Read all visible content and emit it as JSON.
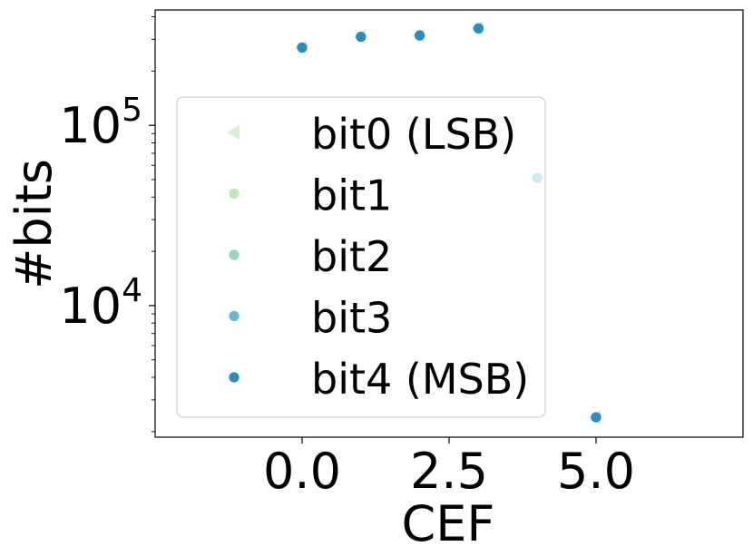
{
  "chart_data": {
    "type": "scatter",
    "xlabel": "CEF",
    "ylabel": "#bits",
    "xlim": [
      -2.5,
      7.5
    ],
    "ylim_log10": [
      3.27,
      5.64
    ],
    "yscale": "log",
    "xticks": [
      0.0,
      2.5,
      5.0
    ],
    "xtick_labels": [
      "0.0",
      "2.5",
      "5.0"
    ],
    "yticks": [
      10000,
      100000
    ],
    "ytick_labels": [
      {
        "base": "10",
        "exp": "4"
      },
      {
        "base": "10",
        "exp": "5"
      }
    ],
    "grid": false,
    "legend_position": "center-left",
    "series": [
      {
        "name": "bit0 (LSB)",
        "marker": "triangle-left",
        "color": "#d9f0d3",
        "x": [
          0,
          1,
          2,
          3,
          4,
          5
        ],
        "y": [
          270000,
          310000,
          315000,
          345000,
          51000,
          2400
        ]
      },
      {
        "name": "bit1",
        "marker": "circle",
        "color": "#c2e6bd",
        "x": [
          0,
          1,
          2,
          3,
          4,
          5
        ],
        "y": [
          270000,
          310000,
          315000,
          345000,
          51000,
          2400
        ]
      },
      {
        "name": "bit2",
        "marker": "circle",
        "color": "#99d6bc",
        "x": [
          0,
          1,
          2,
          3,
          4,
          5
        ],
        "y": [
          270000,
          310000,
          315000,
          345000,
          51000,
          2400
        ]
      },
      {
        "name": "bit3",
        "marker": "circle",
        "color": "#63bccf",
        "x": [
          0,
          1,
          2,
          3,
          4,
          5
        ],
        "y": [
          270000,
          310000,
          315000,
          345000,
          51000,
          2400
        ]
      },
      {
        "name": "bit4 (MSB)",
        "marker": "circle",
        "color": "#2b8cbe",
        "x": [
          0,
          1,
          2,
          3,
          4,
          5
        ],
        "y": [
          270000,
          310000,
          315000,
          345000,
          51000,
          2400
        ]
      }
    ]
  }
}
